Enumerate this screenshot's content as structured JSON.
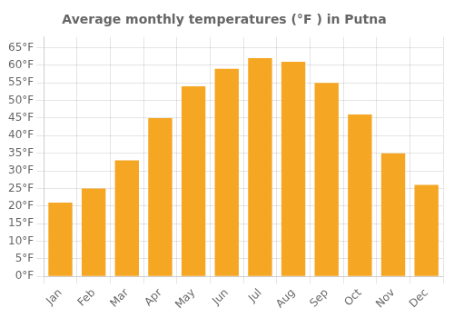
{
  "chart_data": {
    "type": "bar",
    "title": "Average monthly temperatures (°F ) in Putna",
    "categories": [
      "Jan",
      "Feb",
      "Mar",
      "Apr",
      "May",
      "Jun",
      "Jul",
      "Aug",
      "Sep",
      "Oct",
      "Nov",
      "Dec"
    ],
    "values": [
      21,
      25,
      33,
      45,
      54,
      59,
      62,
      61,
      55,
      46,
      35,
      26
    ],
    "color": "#F5A623",
    "ylim": [
      0,
      68
    ],
    "yticks": [
      {
        "value": 0,
        "label": "0°F"
      },
      {
        "value": 5,
        "label": "5°F"
      },
      {
        "value": 10,
        "label": "10°F"
      },
      {
        "value": 15,
        "label": "15°F"
      },
      {
        "value": 20,
        "label": "20°F"
      },
      {
        "value": 25,
        "label": "25°F"
      },
      {
        "value": 30,
        "label": "30°F"
      },
      {
        "value": 35,
        "label": "35°F"
      },
      {
        "value": 40,
        "label": "40°F"
      },
      {
        "value": 45,
        "label": "45°F"
      },
      {
        "value": 50,
        "label": "50°F"
      },
      {
        "value": 55,
        "label": "55°F"
      },
      {
        "value": 60,
        "label": "60°F"
      },
      {
        "value": 65,
        "label": "65°F"
      }
    ],
    "grid": true
  }
}
